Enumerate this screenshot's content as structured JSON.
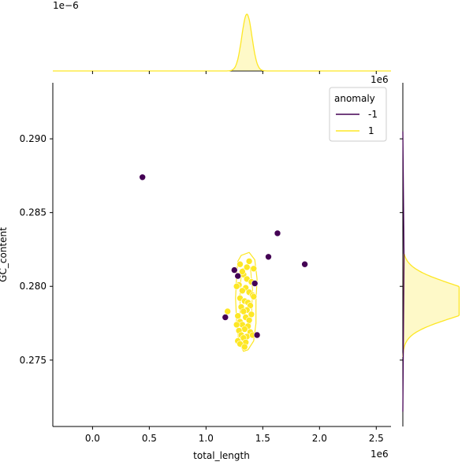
{
  "chart_data": {
    "type": "scatter",
    "subtype": "jointplot",
    "title": "",
    "xlabel": "total_length",
    "ylabel": "GC_content",
    "x_offset_label": "1e6",
    "y_offset_label_top_marginal": "1e−6",
    "right_marginal_offset_label": "1e6",
    "xlim": [
      -0.35,
      2.63
    ],
    "ylim": [
      0.2705,
      0.2938
    ],
    "x_ticks": [
      0.0,
      0.5,
      1.0,
      1.5,
      2.0,
      2.5
    ],
    "x_tick_labels": [
      "0.0",
      "0.5",
      "1.0",
      "1.5",
      "2.0",
      "2.5"
    ],
    "y_ticks": [
      0.275,
      0.28,
      0.285,
      0.29
    ],
    "y_tick_labels": [
      "0.275",
      "0.280",
      "0.285",
      "0.290"
    ],
    "grid": false,
    "legend": {
      "title": "anomaly",
      "placement": "upper-right",
      "entries": [
        {
          "label": "-1",
          "color": "#440154"
        },
        {
          "label": "1",
          "color": "#fde725"
        }
      ]
    },
    "series": [
      {
        "name": "-1",
        "color": "#440154",
        "points": [
          [
            0.44,
            0.2874
          ],
          [
            1.63,
            0.2836
          ],
          [
            1.55,
            0.282
          ],
          [
            1.87,
            0.2815
          ],
          [
            1.25,
            0.2811
          ],
          [
            1.28,
            0.2807
          ],
          [
            1.43,
            0.2802
          ],
          [
            1.17,
            0.2779
          ],
          [
            1.45,
            0.2767
          ]
        ]
      },
      {
        "name": "1",
        "color": "#fde725",
        "points": [
          [
            1.3,
            0.2815
          ],
          [
            1.38,
            0.2817
          ],
          [
            1.42,
            0.2812
          ],
          [
            1.33,
            0.2808
          ],
          [
            1.36,
            0.2805
          ],
          [
            1.4,
            0.2803
          ],
          [
            1.29,
            0.2801
          ],
          [
            1.35,
            0.2799
          ],
          [
            1.32,
            0.2797
          ],
          [
            1.38,
            0.2796
          ],
          [
            1.41,
            0.2794
          ],
          [
            1.3,
            0.2792
          ],
          [
            1.34,
            0.279
          ],
          [
            1.37,
            0.2789
          ],
          [
            1.39,
            0.2787
          ],
          [
            1.31,
            0.2786
          ],
          [
            1.36,
            0.2784
          ],
          [
            1.33,
            0.2783
          ],
          [
            1.4,
            0.2781
          ],
          [
            1.28,
            0.278
          ],
          [
            1.35,
            0.2779
          ],
          [
            1.38,
            0.2777
          ],
          [
            1.3,
            0.2776
          ],
          [
            1.32,
            0.2774
          ],
          [
            1.37,
            0.2773
          ],
          [
            1.34,
            0.2771
          ],
          [
            1.29,
            0.277
          ],
          [
            1.39,
            0.2769
          ],
          [
            1.31,
            0.2767
          ],
          [
            1.36,
            0.2766
          ],
          [
            1.33,
            0.2765
          ],
          [
            1.28,
            0.2763
          ],
          [
            1.35,
            0.2762
          ],
          [
            1.3,
            0.2761
          ],
          [
            1.34,
            0.2759
          ],
          [
            1.41,
            0.2767
          ],
          [
            1.27,
            0.2774
          ],
          [
            1.42,
            0.2793
          ],
          [
            1.27,
            0.28
          ],
          [
            1.19,
            0.2783
          ],
          [
            1.36,
            0.2813
          ],
          [
            1.32,
            0.281
          ]
        ]
      }
    ],
    "marginal_x": {
      "series": "1",
      "peak_x": 1.36,
      "spread": 0.045,
      "color": "#fde725"
    },
    "marginal_y": {
      "series": [
        {
          "name": "1",
          "color": "#fde725",
          "peaks": [
            [
              0.2786,
              1.0
            ],
            [
              0.2796,
              0.72
            ]
          ],
          "range": [
            0.2752,
            0.2822
          ]
        },
        {
          "name": "-1",
          "color": "#440154",
          "range": [
            0.2715,
            0.2905
          ]
        }
      ]
    }
  }
}
